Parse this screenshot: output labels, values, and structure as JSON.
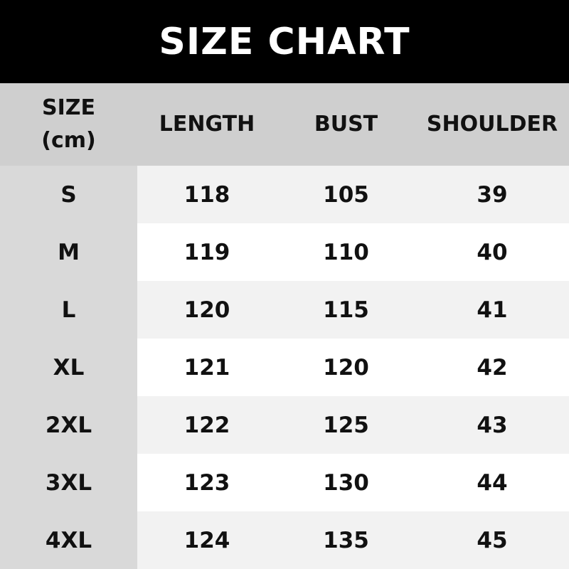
{
  "title": "SIZE CHART",
  "headers": [
    "SIZE\n(cm)",
    "LENGTH",
    "BUST",
    "SHOULDER"
  ],
  "header_size_line1": "SIZE",
  "header_size_line2": "(cm)",
  "rows": [
    [
      "S",
      "118",
      "105",
      "39"
    ],
    [
      "M",
      "119",
      "110",
      "40"
    ],
    [
      "L",
      "120",
      "115",
      "41"
    ],
    [
      "XL",
      "121",
      "120",
      "42"
    ],
    [
      "2XL",
      "122",
      "125",
      "43"
    ],
    [
      "3XL",
      "123",
      "130",
      "44"
    ],
    [
      "4XL",
      "124",
      "135",
      "45"
    ]
  ]
}
